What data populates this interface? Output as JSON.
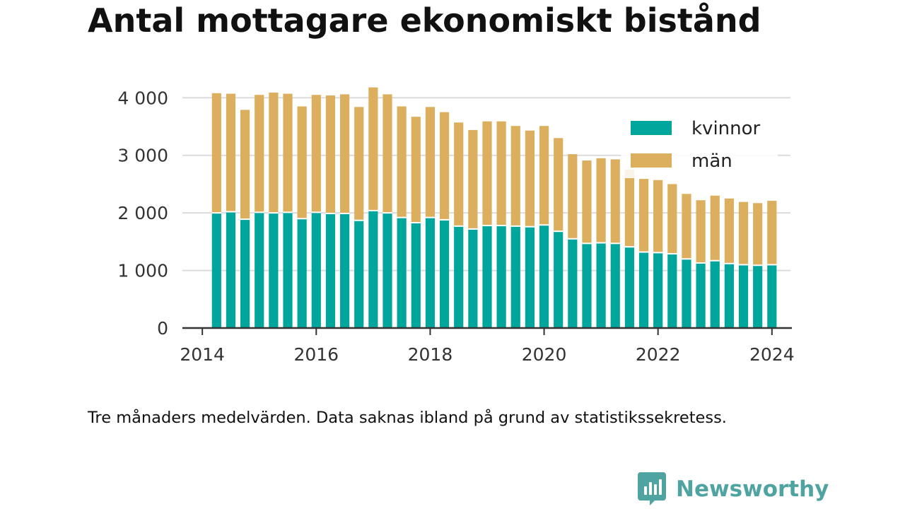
{
  "title": "Antal mottagare ekonomiskt bistånd",
  "footnote": "Tre månaders medelvärden. Data saknas ibland på grund av statistikssekretess.",
  "brand": {
    "name": "Newsworthy",
    "icon": "newsworthy-logo-icon",
    "color": "#4fa3a0"
  },
  "chart_data": {
    "type": "bar",
    "stacked": true,
    "grid": true,
    "legend_position": "top-right",
    "ylim": [
      0,
      4200
    ],
    "xlim": [
      2013.7,
      2024.35
    ],
    "y_ticks": [
      {
        "value": 0,
        "label": "0"
      },
      {
        "value": 1000,
        "label": "1 000"
      },
      {
        "value": 2000,
        "label": "2 000"
      },
      {
        "value": 3000,
        "label": "3 000"
      },
      {
        "value": 4000,
        "label": "4 000"
      }
    ],
    "x_ticks": [
      {
        "value": 2014,
        "label": "2014"
      },
      {
        "value": 2016,
        "label": "2016"
      },
      {
        "value": 2018,
        "label": "2018"
      },
      {
        "value": 2020,
        "label": "2020"
      },
      {
        "value": 2022,
        "label": "2022"
      },
      {
        "value": 2024,
        "label": "2024"
      }
    ],
    "x": [
      2014.25,
      2014.5,
      2014.75,
      2015.0,
      2015.25,
      2015.5,
      2015.75,
      2016.0,
      2016.25,
      2016.5,
      2016.75,
      2017.0,
      2017.25,
      2017.5,
      2017.75,
      2018.0,
      2018.25,
      2018.5,
      2018.75,
      2019.0,
      2019.25,
      2019.5,
      2019.75,
      2020.0,
      2020.25,
      2020.5,
      2020.75,
      2021.0,
      2021.25,
      2021.5,
      2021.75,
      2022.0,
      2022.25,
      2022.5,
      2022.75,
      2023.0,
      2023.25,
      2023.5,
      2023.75,
      2024.0
    ],
    "series": [
      {
        "name": "kvinnor",
        "color": "#00a69c",
        "values": [
          2000,
          2020,
          1890,
          2010,
          2000,
          2010,
          1900,
          2010,
          1990,
          1990,
          1870,
          2040,
          2000,
          1920,
          1830,
          1920,
          1880,
          1770,
          1720,
          1780,
          1780,
          1770,
          1760,
          1790,
          1680,
          1550,
          1470,
          1480,
          1470,
          1410,
          1320,
          1310,
          1290,
          1200,
          1130,
          1170,
          1120,
          1100,
          1090,
          1100
        ]
      },
      {
        "name": "män",
        "color": "#dcaf5f",
        "values": [
          2080,
          2050,
          1900,
          2040,
          2090,
          2060,
          1950,
          2040,
          2050,
          2070,
          1970,
          2140,
          2060,
          1930,
          1840,
          1920,
          1870,
          1800,
          1720,
          1810,
          1810,
          1740,
          1670,
          1720,
          1620,
          1470,
          1440,
          1470,
          1460,
          1340,
          1270,
          1260,
          1210,
          1130,
          1090,
          1130,
          1130,
          1090,
          1080,
          1110
        ]
      }
    ]
  }
}
